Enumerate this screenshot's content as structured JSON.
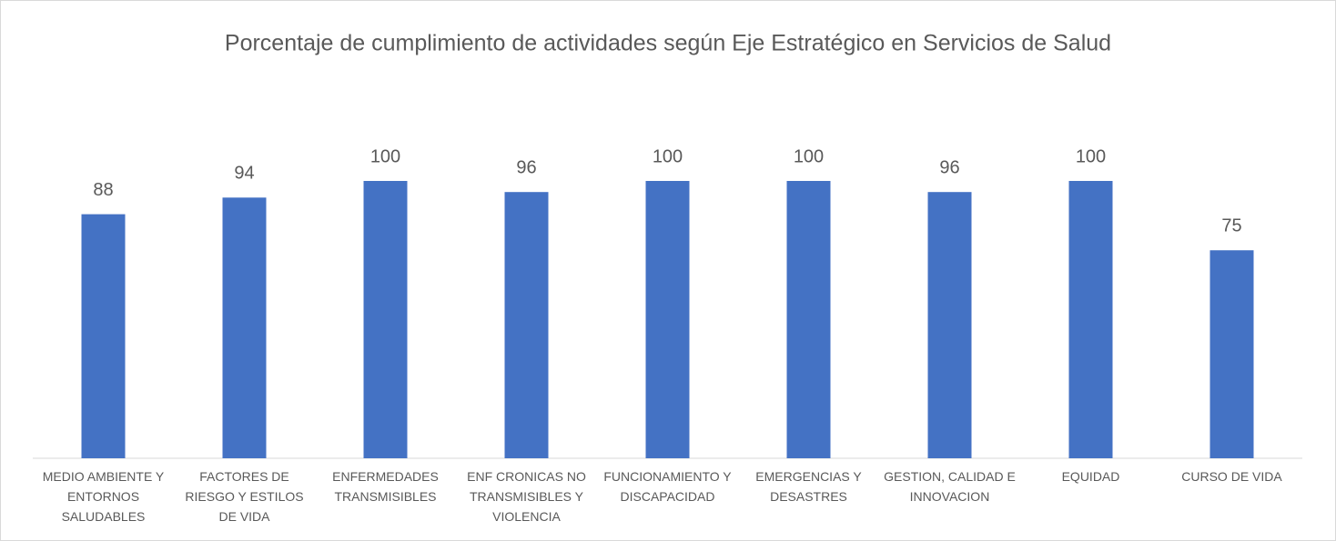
{
  "chart_data": {
    "type": "bar",
    "title": "Porcentaje de cumplimiento de actividades según Eje Estratégico en Servicios de Salud",
    "categories": [
      "MEDIO AMBIENTE Y ENTORNOS SALUDABLES",
      "FACTORES DE RIESGO Y ESTILOS DE VIDA",
      "ENFERMEDADES TRANSMISIBLES",
      "ENF CRONICAS NO TRANSMISIBLES Y VIOLENCIA",
      "FUNCIONAMIENTO Y DISCAPACIDAD",
      "EMERGENCIAS Y DESASTRES",
      "GESTION, CALIDAD E INNOVACION",
      "EQUIDAD",
      "CURSO DE VIDA"
    ],
    "values": [
      88,
      94,
      100,
      96,
      100,
      100,
      96,
      100,
      75
    ],
    "color": "#4472c4",
    "ylim": [
      0,
      100
    ]
  }
}
